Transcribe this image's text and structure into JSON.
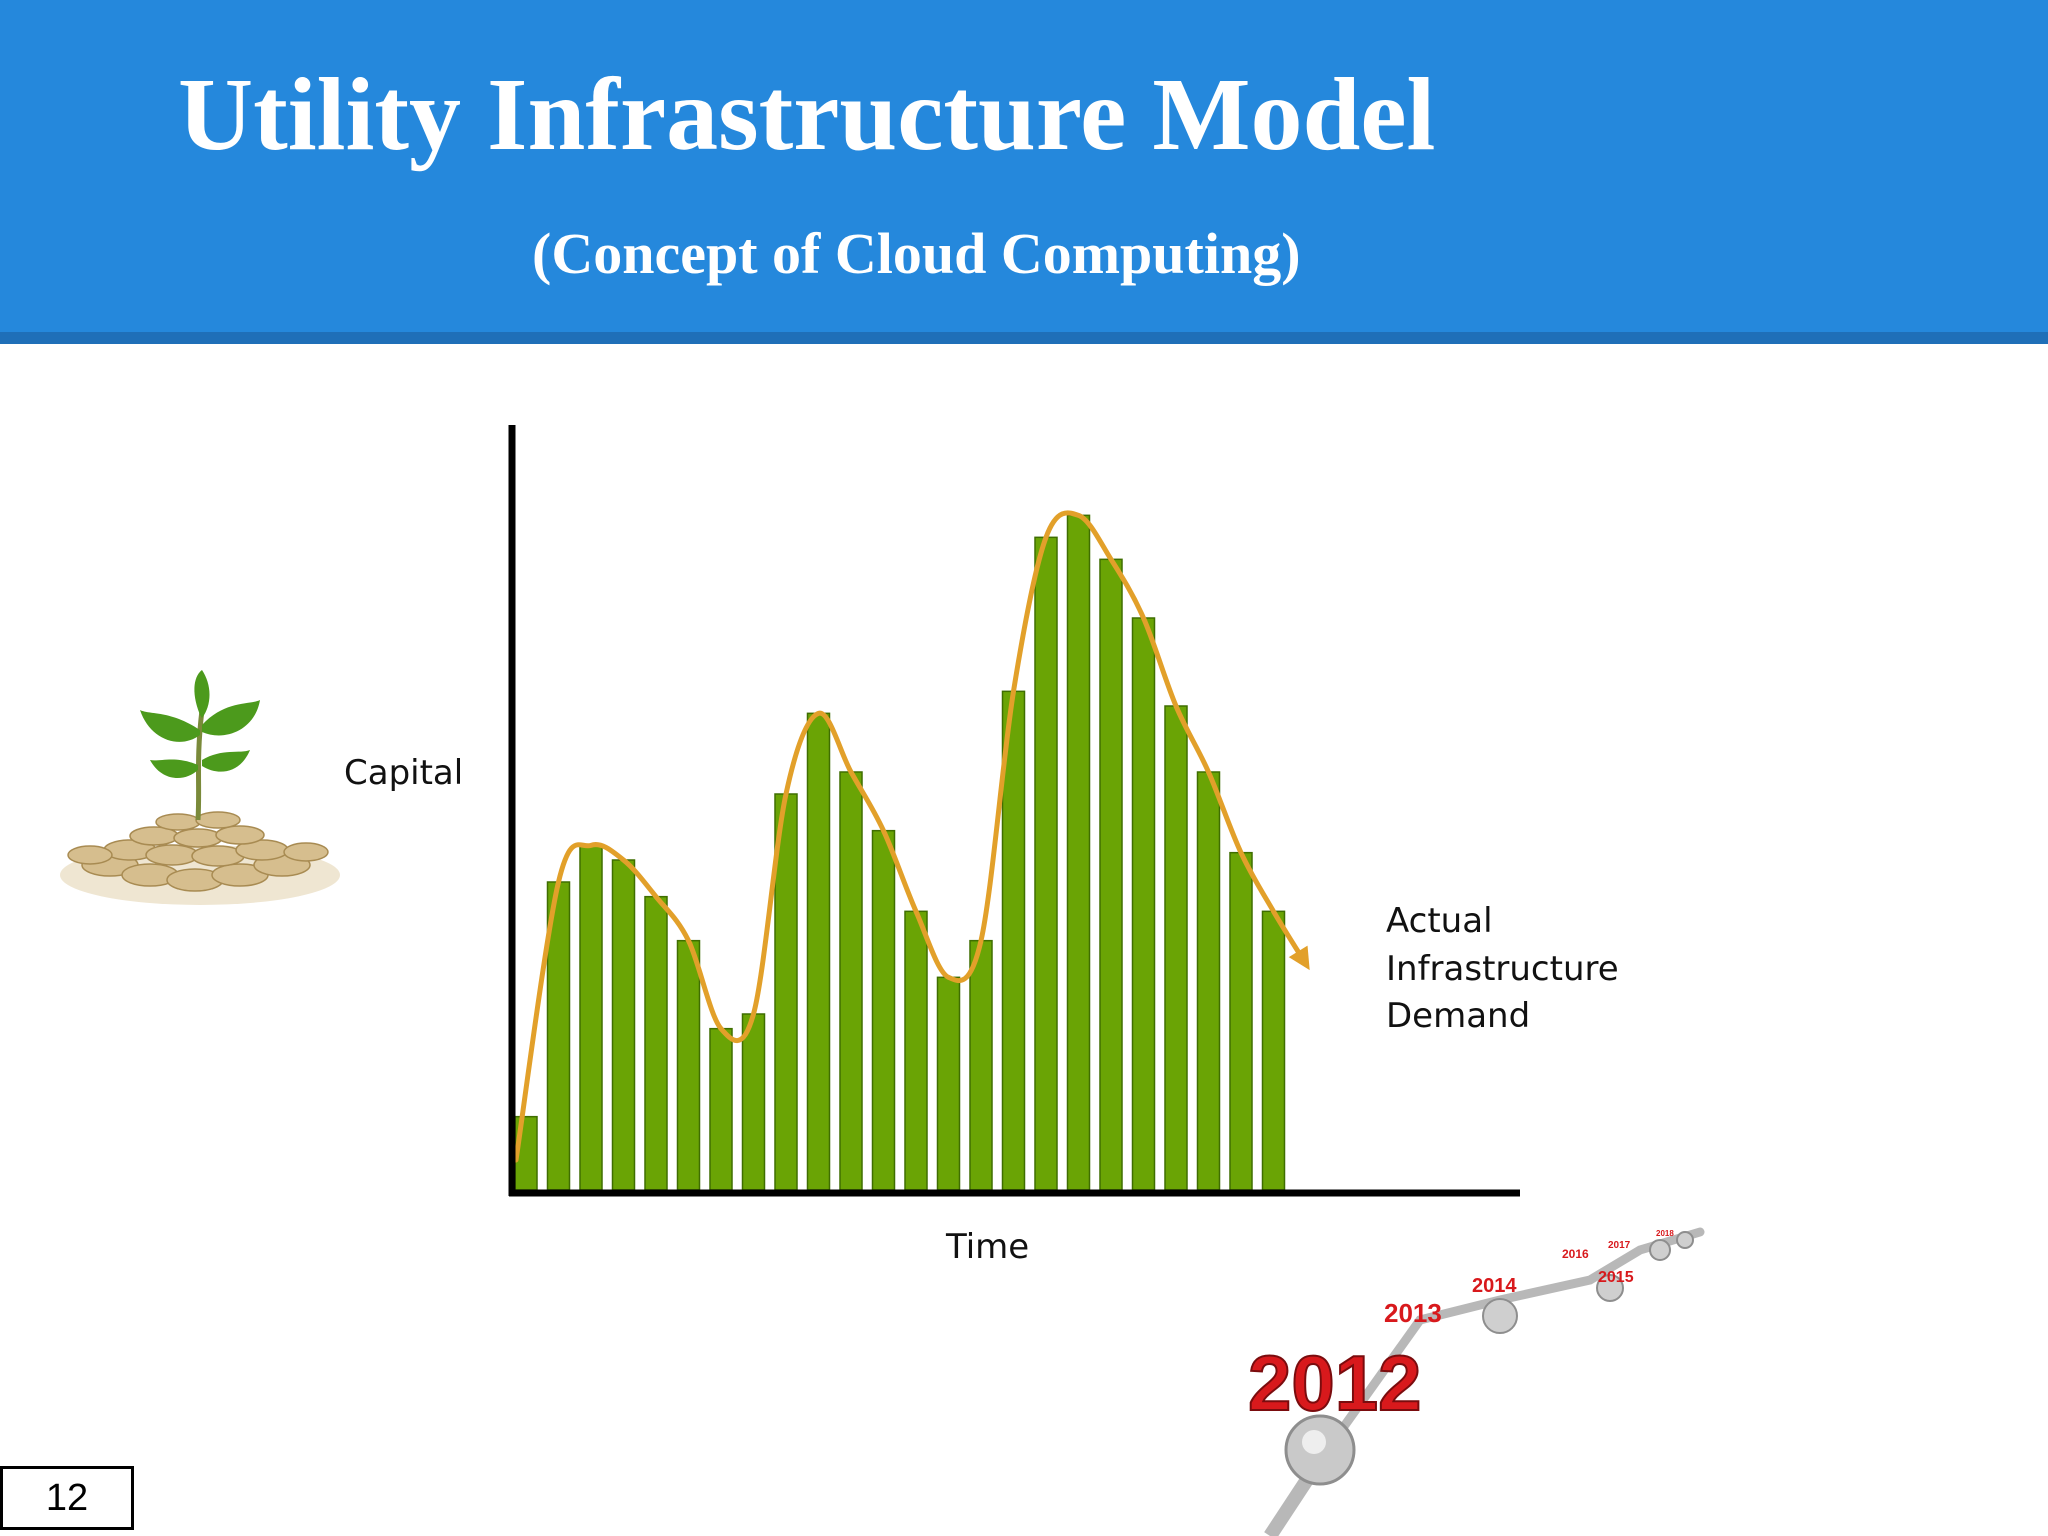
{
  "slide": {
    "title": "Utility Infrastructure Model",
    "subtitle": "(Concept of Cloud Computing)",
    "page_number": "12"
  },
  "illustrations": {
    "left": "plant-sprouting-from-coins-icon",
    "bottom_right": "year-timeline-icon",
    "timeline_years": [
      "2012",
      "2013",
      "2014",
      "2015",
      "2016",
      "2017",
      "2018"
    ]
  },
  "colors": {
    "header": "#2588dc",
    "header_stripe": "#1f6fb8",
    "bar": "#6aa405",
    "bar_dark": "#3f6e00",
    "curve": "#e2a02a",
    "axis": "#000000",
    "timeline_red": "#d8191c"
  },
  "chart_data": {
    "type": "bar",
    "title": "",
    "xlabel": "Time",
    "ylabel": "Capital",
    "values": [
      10,
      42,
      47,
      45,
      40,
      34,
      22,
      24,
      54,
      65,
      57,
      49,
      38,
      29,
      34,
      68,
      89,
      92,
      86,
      78,
      66,
      57,
      46,
      38
    ],
    "ylim": [
      0,
      105
    ],
    "grid": false,
    "overlay": {
      "type": "smoothed-trend-line",
      "arrow": true,
      "label": [
        "Actual",
        "Infrastructure",
        "Demand"
      ],
      "label_position": "right"
    }
  }
}
